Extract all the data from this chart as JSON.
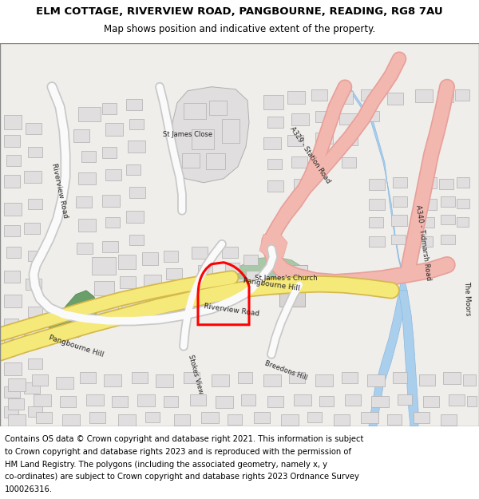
{
  "title_line1": "ELM COTTAGE, RIVERVIEW ROAD, PANGBOURNE, READING, RG8 7AU",
  "title_line2": "Map shows position and indicative extent of the property.",
  "footer_lines": [
    "Contains OS data © Crown copyright and database right 2021. This information is subject",
    "to Crown copyright and database rights 2023 and is reproduced with the permission of",
    "HM Land Registry. The polygons (including the associated geometry, namely x, y",
    "co-ordinates) are subject to Crown copyright and database rights 2023 Ordnance Survey",
    "100026316."
  ],
  "map_bg": "#f0eeeb",
  "road_yellow": "#f5e97a",
  "road_yellow_border": "#d4b84a",
  "road_pink": "#f2b8b0",
  "road_pink_dark": "#e8a09a",
  "water_fill": "#aacfed",
  "water_stroke": "#88b8e0",
  "green_fill": "#6a9f6a",
  "green_stroke": "#4a7f4a",
  "building_fill": "#e0dede",
  "building_stroke": "#b0aeae",
  "road_white": "#fafafa",
  "road_white_border": "#c8c8c8",
  "property_color": "#ff0000",
  "property_lw": 2.2,
  "title_fs": 9.5,
  "subtitle_fs": 8.5,
  "footer_fs": 7.2,
  "label_fs": 6.0
}
